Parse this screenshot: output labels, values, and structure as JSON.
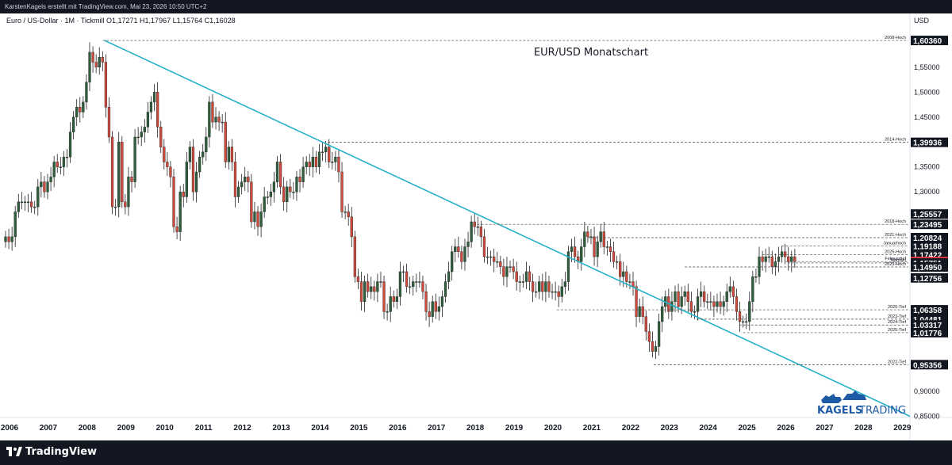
{
  "header": {
    "attribution": "KarstenKagels erstellt mit TradingView.com, Mai 23, 2026 10:50 UTC+2",
    "symbol_info": "Euro / US-Dollar · 1M · Tickmill  O1,17271  H1,17967  L1,15764  C1,16028"
  },
  "footer": {
    "logo_text": "TradingView"
  },
  "brand": {
    "name_bold": "KAGELS",
    "name_light": "TRADING"
  },
  "colors": {
    "up": "#26a69a",
    "up_body": "#2e5e3a",
    "down": "#d04a3c",
    "trendline": "#26b0c8",
    "current_price_bg": "#f23645",
    "tag_bg": "#131722"
  },
  "chart_data": {
    "type": "candlestick",
    "title": "EUR/USD Monatschart",
    "currency_label": "USD",
    "ylim": [
      0.835,
      1.645
    ],
    "y_ticks": [
      "0,90000",
      "1,35000",
      "1,45000",
      "1,50000",
      "1,55000",
      "1,30000"
    ],
    "y_tick_values": [
      0.9,
      1.35,
      1.45,
      1.5,
      1.55,
      1.3
    ],
    "x_labels": [
      "2006",
      "2007",
      "2008",
      "2009",
      "2010",
      "2011",
      "2012",
      "2013",
      "2014",
      "2015",
      "2016",
      "2017",
      "2018",
      "2019",
      "2020",
      "2021",
      "2022",
      "2023",
      "2024",
      "2025",
      "2026",
      "2027",
      "2028",
      "2029"
    ],
    "xlim": [
      2006.0,
      2029.3
    ],
    "current_price": "1,16028",
    "levels": [
      {
        "label": "2008-Hoch",
        "value": 1.6036,
        "tag": "1,60360",
        "start": 2008.5,
        "tag_style": "dark"
      },
      {
        "label": "2014-Hoch",
        "value": 1.39936,
        "tag": "1,39936",
        "start": 2014.3,
        "tag_style": "dark"
      },
      {
        "label": "",
        "value": 1.25557,
        "tag": "1,25557",
        "start": null,
        "tag_style": "dark"
      },
      {
        "label": "2018-Hoch",
        "value": 1.23495,
        "tag": "1,23495",
        "start": 2018.05,
        "tag_style": "dark"
      },
      {
        "label": "2021-Hoch",
        "value": 1.20824,
        "tag": "1,20824",
        "start": 2021.0,
        "tag_style": "dark"
      },
      {
        "label": "Januarhoch",
        "value": 1.19188,
        "tag": "1,19188",
        "start": 2026.0,
        "tag_style": "dark"
      },
      {
        "label": "2025-Hoch",
        "value": 1.17422,
        "tag": "1,17422",
        "start": 2025.5,
        "tag_style": "dark"
      },
      {
        "label": "Februartief",
        "value": 1.16028,
        "tag": "1,16028",
        "start": 2026.1,
        "tag_style": "red"
      },
      {
        "label": "Märztief",
        "value": 1.1575,
        "tag": "",
        "start": 2026.15,
        "tag_style": "none"
      },
      {
        "label": "",
        "value": 1.15751,
        "tag": "1,15751",
        "start": null,
        "tag_style": "dark"
      },
      {
        "label": "2023-Hoch",
        "value": 1.1495,
        "tag": "1,14950",
        "start": 2023.5,
        "tag_style": "dark"
      },
      {
        "label": "",
        "value": 1.12756,
        "tag": "1,12756",
        "start": null,
        "tag_style": "dark"
      },
      {
        "label": "2020-Tief",
        "value": 1.06358,
        "tag": "1,06358",
        "start": 2020.2,
        "tag_style": "dark"
      },
      {
        "label": "2023-Tief",
        "value": 1.04481,
        "tag": "1,04481",
        "start": 2023.8,
        "tag_style": "dark"
      },
      {
        "label": "2024-Tief",
        "value": 1.03317,
        "tag": "1,03317",
        "start": 2024.9,
        "tag_style": "dark"
      },
      {
        "label": "2025-Tief",
        "value": 1.01776,
        "tag": "1,01776",
        "start": 2025.0,
        "tag_style": "dark"
      },
      {
        "label": "2022-Tief",
        "value": 0.95356,
        "tag": "0,95356",
        "start": 2022.7,
        "tag_style": "dark"
      },
      {
        "label": "",
        "value": 0.85,
        "tag": "0,85000",
        "start": null,
        "tag_style": "plain"
      }
    ],
    "trendline": {
      "x1": 2008.55,
      "y1": 1.6036,
      "x2": 2029.3,
      "y2": 0.85
    },
    "ohlc_monthly_closes": {
      "start": 2006.0,
      "closes": [
        1.21,
        1.2,
        1.21,
        1.26,
        1.28,
        1.28,
        1.28,
        1.28,
        1.27,
        1.27,
        1.31,
        1.32,
        1.3,
        1.32,
        1.33,
        1.36,
        1.35,
        1.35,
        1.37,
        1.37,
        1.42,
        1.45,
        1.47,
        1.46,
        1.48,
        1.52,
        1.58,
        1.56,
        1.55,
        1.57,
        1.56,
        1.47,
        1.41,
        1.27,
        1.27,
        1.4,
        1.28,
        1.27,
        1.33,
        1.32,
        1.41,
        1.41,
        1.42,
        1.43,
        1.46,
        1.48,
        1.5,
        1.43,
        1.39,
        1.36,
        1.35,
        1.33,
        1.23,
        1.22,
        1.3,
        1.29,
        1.36,
        1.39,
        1.3,
        1.34,
        1.37,
        1.38,
        1.41,
        1.48,
        1.44,
        1.45,
        1.44,
        1.44,
        1.36,
        1.39,
        1.36,
        1.29,
        1.31,
        1.32,
        1.33,
        1.32,
        1.24,
        1.26,
        1.23,
        1.26,
        1.29,
        1.29,
        1.3,
        1.32,
        1.36,
        1.31,
        1.28,
        1.31,
        1.3,
        1.3,
        1.33,
        1.32,
        1.35,
        1.36,
        1.35,
        1.37,
        1.35,
        1.38,
        1.38,
        1.39,
        1.36,
        1.36,
        1.37,
        1.34,
        1.26,
        1.26,
        1.25,
        1.21,
        1.13,
        1.12,
        1.08,
        1.12,
        1.1,
        1.11,
        1.1,
        1.12,
        1.12,
        1.06,
        1.06,
        1.09,
        1.08,
        1.09,
        1.14,
        1.14,
        1.11,
        1.11,
        1.12,
        1.12,
        1.12,
        1.1,
        1.06,
        1.05,
        1.08,
        1.06,
        1.07,
        1.09,
        1.12,
        1.14,
        1.18,
        1.19,
        1.18,
        1.16,
        1.19,
        1.2,
        1.24,
        1.23,
        1.23,
        1.21,
        1.17,
        1.17,
        1.17,
        1.16,
        1.16,
        1.15,
        1.13,
        1.15,
        1.15,
        1.14,
        1.12,
        1.12,
        1.12,
        1.14,
        1.12,
        1.1,
        1.1,
        1.12,
        1.1,
        1.12,
        1.1,
        1.1,
        1.1,
        1.09,
        1.11,
        1.12,
        1.18,
        1.19,
        1.17,
        1.16,
        1.19,
        1.22,
        1.21,
        1.21,
        1.17,
        1.2,
        1.22,
        1.19,
        1.19,
        1.18,
        1.16,
        1.16,
        1.13,
        1.14,
        1.12,
        1.12,
        1.11,
        1.05,
        1.07,
        1.05,
        1.02,
        1.0,
        0.98,
        0.99,
        1.04,
        1.07,
        1.09,
        1.06,
        1.08,
        1.1,
        1.07,
        1.09,
        1.1,
        1.08,
        1.06,
        1.06,
        1.09,
        1.1,
        1.08,
        1.08,
        1.08,
        1.07,
        1.08,
        1.07,
        1.08,
        1.1,
        1.11,
        1.09,
        1.06,
        1.04,
        1.04,
        1.04,
        1.08,
        1.13,
        1.13,
        1.17,
        1.16,
        1.17,
        1.17,
        1.15,
        1.16,
        1.17,
        1.18,
        1.17,
        1.16,
        1.17,
        1.16
      ]
    }
  }
}
